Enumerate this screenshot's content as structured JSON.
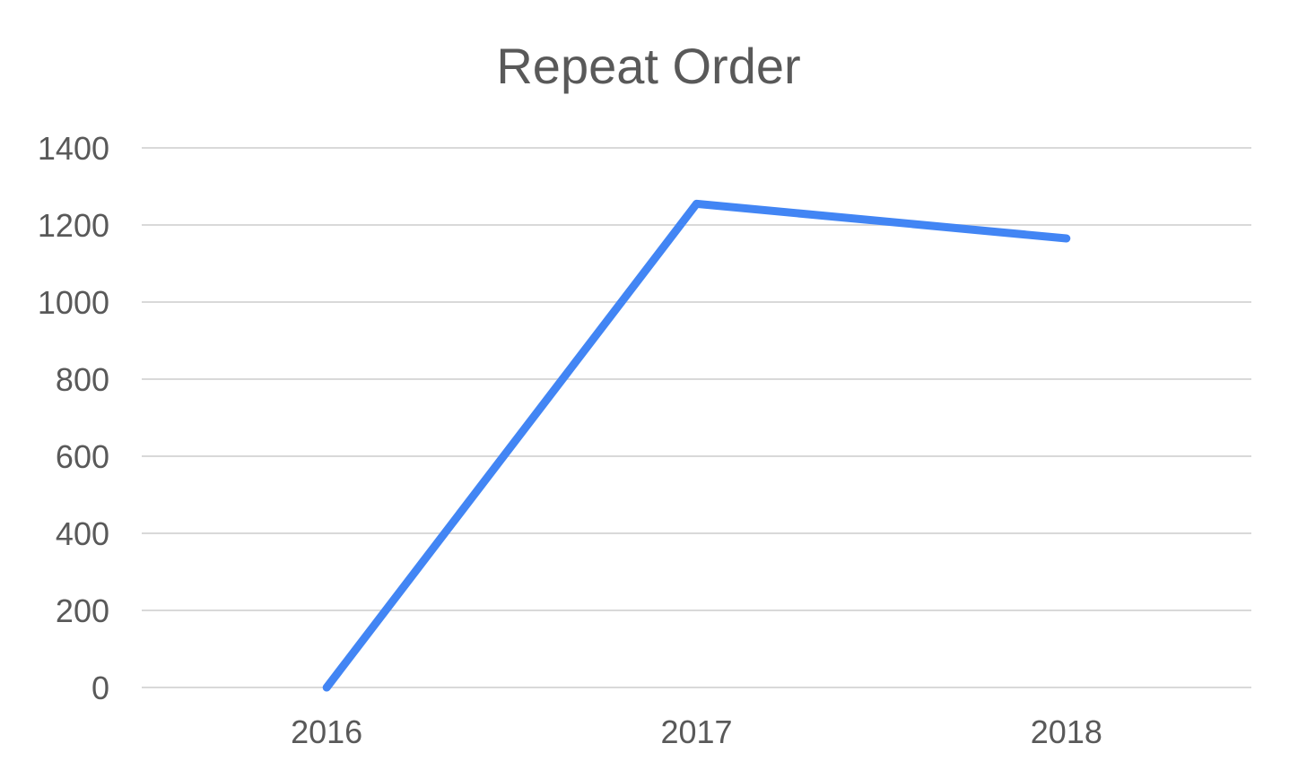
{
  "chart_data": {
    "type": "line",
    "title": "Repeat Order",
    "xlabel": "",
    "ylabel": "",
    "categories": [
      "2016",
      "2017",
      "2018"
    ],
    "series": [
      {
        "values": [
          0,
          1255,
          1165
        ],
        "color": "#4285f4"
      }
    ],
    "ylim": [
      0,
      1400
    ],
    "yticks": [
      0,
      200,
      400,
      600,
      800,
      1000,
      1200,
      1400
    ],
    "grid": true,
    "legend": "none"
  }
}
